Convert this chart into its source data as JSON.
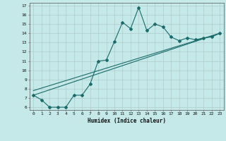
{
  "xlabel": "Humidex (Indice chaleur)",
  "bg_color": "#c5e8e8",
  "line_color": "#1a6b6b",
  "grid_color": "#b0cccc",
  "x_min": 0,
  "x_max": 23,
  "y_min": 6,
  "y_max": 17,
  "line1_x": [
    0,
    1,
    2,
    3,
    4,
    5,
    6,
    7,
    8,
    9,
    10,
    11,
    12,
    13,
    14,
    15,
    16,
    17,
    18,
    19,
    20,
    21,
    22,
    23
  ],
  "line1_y": [
    7.3,
    6.8,
    6.0,
    6.0,
    6.0,
    7.3,
    7.3,
    8.5,
    11.0,
    11.1,
    13.1,
    15.2,
    14.5,
    16.8,
    14.3,
    15.0,
    14.7,
    13.6,
    13.2,
    13.5,
    13.3,
    13.5,
    13.6,
    14.0
  ],
  "line2_x": [
    0,
    23
  ],
  "line2_y": [
    7.3,
    14.0
  ],
  "line3_x": [
    0,
    23
  ],
  "line3_y": [
    7.8,
    14.0
  ],
  "yticks": [
    6,
    7,
    8,
    9,
    10,
    11,
    12,
    13,
    14,
    15,
    16,
    17
  ],
  "xticks": [
    0,
    1,
    2,
    3,
    4,
    5,
    6,
    7,
    8,
    9,
    10,
    11,
    12,
    13,
    14,
    15,
    16,
    17,
    18,
    19,
    20,
    21,
    22,
    23
  ]
}
